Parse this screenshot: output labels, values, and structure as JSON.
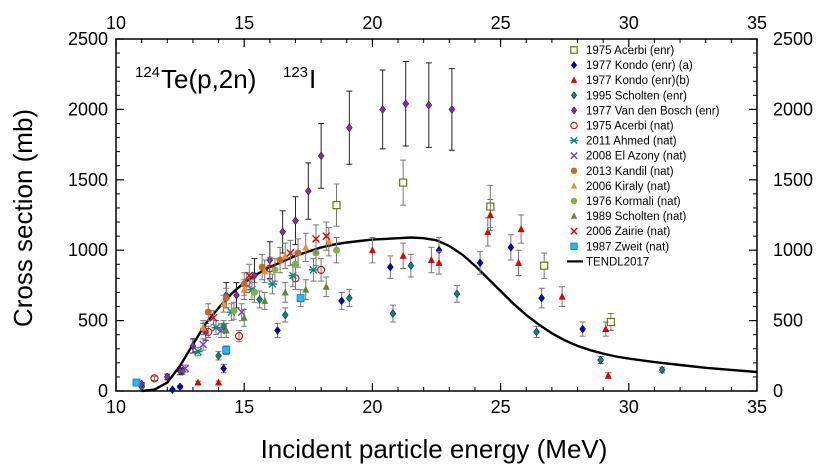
{
  "chart_data": {
    "type": "scatter",
    "title_parts": {
      "mass1": "124",
      "elem1": "Te(p,2n)",
      "mass2": "123",
      "elem2": "I"
    },
    "xlabel": "Incident particle energy (MeV)",
    "ylabel": "Cross section (mb)",
    "xlim": [
      10,
      35
    ],
    "ylim": [
      0,
      2500
    ],
    "xticks": [
      10,
      15,
      20,
      25,
      30,
      35
    ],
    "yticks": [
      0,
      500,
      1000,
      1500,
      2000,
      2500
    ],
    "xtick_labels": [
      "10",
      "15",
      "20",
      "25",
      "30",
      "35"
    ],
    "ytick_labels": [
      "0",
      "500",
      "1000",
      "1500",
      "2000",
      "2500"
    ],
    "legend_position": "top-right",
    "series": [
      {
        "name": "1975 Acerbi (enr)",
        "marker": "square-open",
        "color": "#6b7a00",
        "points": [
          [
            18.6,
            1320,
            150
          ],
          [
            21.2,
            1480,
            160
          ],
          [
            24.6,
            1310,
            150
          ],
          [
            26.7,
            890,
            90
          ],
          [
            29.3,
            490,
            60
          ]
        ]
      },
      {
        "name": "1977 Kondo (enr) (a)",
        "marker": "diamond-filled",
        "color": "#0000cc",
        "points": [
          [
            12.2,
            10,
            5
          ],
          [
            12.5,
            30,
            10
          ],
          [
            14.2,
            160,
            30
          ],
          [
            16.3,
            430,
            50
          ],
          [
            18.8,
            640,
            60
          ],
          [
            20.7,
            880,
            80
          ],
          [
            22.6,
            1000,
            90
          ],
          [
            24.2,
            910,
            80
          ],
          [
            25.4,
            1020,
            90
          ],
          [
            26.6,
            660,
            70
          ],
          [
            28.2,
            440,
            50
          ]
        ]
      },
      {
        "name": "1977 Kondo (enr)(b)",
        "marker": "triangle-filled",
        "color": "#e00000",
        "points": [
          [
            13.2,
            60,
            10
          ],
          [
            14.0,
            60,
            10
          ],
          [
            20.0,
            1000,
            90
          ],
          [
            21.2,
            960,
            90
          ],
          [
            22.3,
            930,
            90
          ],
          [
            22.6,
            910,
            80
          ],
          [
            24.5,
            1130,
            100
          ],
          [
            24.6,
            1250,
            110
          ],
          [
            25.7,
            910,
            90
          ],
          [
            25.8,
            1150,
            100
          ],
          [
            27.4,
            670,
            70
          ],
          [
            29.1,
            440,
            50
          ],
          [
            29.2,
            110,
            20
          ]
        ]
      },
      {
        "name": "1995 Scholten (enr)",
        "marker": "diamond-filled",
        "color": "#00897b",
        "points": [
          [
            11.0,
            30,
            5
          ],
          [
            12.6,
            140,
            20
          ],
          [
            13.4,
            440,
            40
          ],
          [
            14.0,
            250,
            30
          ],
          [
            14.2,
            460,
            40
          ],
          [
            15.6,
            650,
            60
          ],
          [
            16.6,
            540,
            50
          ],
          [
            19.1,
            660,
            60
          ],
          [
            20.8,
            550,
            60
          ],
          [
            21.5,
            890,
            80
          ],
          [
            23.3,
            690,
            60
          ],
          [
            26.4,
            420,
            40
          ],
          [
            28.9,
            220,
            25
          ],
          [
            31.3,
            150,
            20
          ]
        ]
      },
      {
        "name": "1977 Van den Bosch (enr)",
        "marker": "diamond-filled",
        "color": "#8a2aa8",
        "points": [
          [
            11.0,
            50,
            10
          ],
          [
            12.0,
            100,
            20
          ],
          [
            12.5,
            140,
            25
          ],
          [
            13.0,
            320,
            50
          ],
          [
            13.5,
            420,
            60
          ],
          [
            14.3,
            680,
            90
          ],
          [
            14.7,
            680,
            90
          ],
          [
            15.4,
            820,
            120
          ],
          [
            16.0,
            930,
            130
          ],
          [
            16.5,
            1130,
            150
          ],
          [
            17.0,
            1210,
            170
          ],
          [
            17.5,
            1420,
            200
          ],
          [
            18.0,
            1670,
            230
          ],
          [
            19.1,
            1870,
            260
          ],
          [
            20.4,
            2000,
            280
          ],
          [
            21.3,
            2040,
            300
          ],
          [
            22.2,
            2030,
            300
          ],
          [
            23.1,
            2000,
            290
          ]
        ]
      },
      {
        "name": "1975 Acerbi  (nat)",
        "marker": "circle-open",
        "color": "#e00000",
        "points": [
          [
            11.5,
            90,
            15
          ],
          [
            13.6,
            420,
            40
          ],
          [
            14.8,
            390,
            40
          ],
          [
            15.1,
            770,
            70
          ],
          [
            16.0,
            870,
            80
          ],
          [
            17.0,
            800,
            80
          ],
          [
            18.0,
            860,
            80
          ]
        ]
      },
      {
        "name": "2011 Ahmed (nat)",
        "marker": "star6",
        "color": "#00897b",
        "points": [
          [
            13.2,
            280,
            30
          ],
          [
            13.9,
            450,
            50
          ],
          [
            14.5,
            560,
            60
          ],
          [
            15.3,
            720,
            70
          ],
          [
            16.1,
            760,
            70
          ],
          [
            16.9,
            820,
            80
          ],
          [
            17.7,
            860,
            80
          ]
        ]
      },
      {
        "name": "2008 El Azony (nat)",
        "marker": "cross-x",
        "color": "#7b3fc4",
        "points": [
          [
            12.7,
            160,
            25
          ],
          [
            13.4,
            330,
            40
          ],
          [
            14.1,
            430,
            50
          ],
          [
            14.9,
            560,
            60
          ]
        ]
      },
      {
        "name": "2013 Kandil (nat)",
        "marker": "circle-filled",
        "color": "#c56a1c",
        "points": [
          [
            13.6,
            560,
            60
          ],
          [
            14.3,
            660,
            70
          ],
          [
            15.0,
            760,
            80
          ],
          [
            15.7,
            880,
            90
          ],
          [
            16.4,
            930,
            90
          ],
          [
            17.1,
            980,
            100
          ]
        ]
      },
      {
        "name": "2006 Kiraly (nat)",
        "marker": "triangle-filled",
        "color": "#f28c28",
        "points": [
          [
            13.4,
            450,
            50
          ],
          [
            14.2,
            620,
            60
          ],
          [
            15.0,
            720,
            70
          ],
          [
            15.8,
            850,
            80
          ],
          [
            16.6,
            960,
            90
          ],
          [
            17.4,
            1020,
            100
          ],
          [
            18.3,
            1060,
            100
          ]
        ]
      },
      {
        "name": "1976 Kormali (nat)",
        "marker": "circle-filled",
        "color": "#7cb342",
        "points": [
          [
            14.6,
            570,
            60
          ],
          [
            15.4,
            700,
            70
          ],
          [
            16.2,
            860,
            80
          ],
          [
            17.0,
            900,
            80
          ],
          [
            17.8,
            980,
            90
          ],
          [
            18.6,
            1000,
            90
          ]
        ]
      },
      {
        "name": "1989 Scholten (nat)",
        "marker": "triangle-filled",
        "color": "#558b2f",
        "points": [
          [
            14.3,
            430,
            50
          ],
          [
            15.0,
            520,
            60
          ],
          [
            15.8,
            640,
            60
          ],
          [
            16.6,
            700,
            70
          ],
          [
            17.4,
            720,
            70
          ],
          [
            18.2,
            740,
            70
          ]
        ]
      },
      {
        "name": "2006 Zairie  (nat)",
        "marker": "cross-x",
        "color": "#e00000",
        "points": [
          [
            13.8,
            520,
            50
          ],
          [
            15.2,
            820,
            80
          ],
          [
            16.8,
            980,
            90
          ],
          [
            17.8,
            1080,
            100
          ],
          [
            18.2,
            1100,
            100
          ]
        ]
      },
      {
        "name": "1987 Zweit (nat)",
        "marker": "square-filled",
        "color": "#29b6f6",
        "points": [
          [
            10.8,
            60,
            10
          ],
          [
            14.3,
            290,
            30
          ],
          [
            17.2,
            660,
            60
          ]
        ]
      }
    ],
    "curve": {
      "name": "TENDL2017",
      "color": "#000000",
      "points": [
        [
          11.0,
          0
        ],
        [
          11.5,
          10
        ],
        [
          12.0,
          60
        ],
        [
          12.5,
          180
        ],
        [
          13.0,
          330
        ],
        [
          13.5,
          480
        ],
        [
          14.0,
          590
        ],
        [
          14.5,
          690
        ],
        [
          15.0,
          770
        ],
        [
          15.5,
          830
        ],
        [
          16.0,
          880
        ],
        [
          16.5,
          920
        ],
        [
          17.0,
          960
        ],
        [
          17.5,
          990
        ],
        [
          18.0,
          1020
        ],
        [
          18.5,
          1040
        ],
        [
          19.0,
          1055
        ],
        [
          19.5,
          1065
        ],
        [
          20.0,
          1075
        ],
        [
          20.5,
          1080
        ],
        [
          21.0,
          1085
        ],
        [
          21.5,
          1090
        ],
        [
          22.0,
          1085
        ],
        [
          22.5,
          1070
        ],
        [
          23.0,
          1030
        ],
        [
          23.5,
          970
        ],
        [
          24.0,
          890
        ],
        [
          24.5,
          800
        ],
        [
          25.0,
          710
        ],
        [
          25.5,
          620
        ],
        [
          26.0,
          540
        ],
        [
          26.5,
          470
        ],
        [
          27.0,
          410
        ],
        [
          27.5,
          360
        ],
        [
          28.0,
          320
        ],
        [
          28.5,
          290
        ],
        [
          29.0,
          265
        ],
        [
          29.5,
          245
        ],
        [
          30.0,
          230
        ],
        [
          31.0,
          205
        ],
        [
          32.0,
          185
        ],
        [
          33.0,
          165
        ],
        [
          34.0,
          150
        ],
        [
          35.0,
          135
        ]
      ]
    }
  }
}
